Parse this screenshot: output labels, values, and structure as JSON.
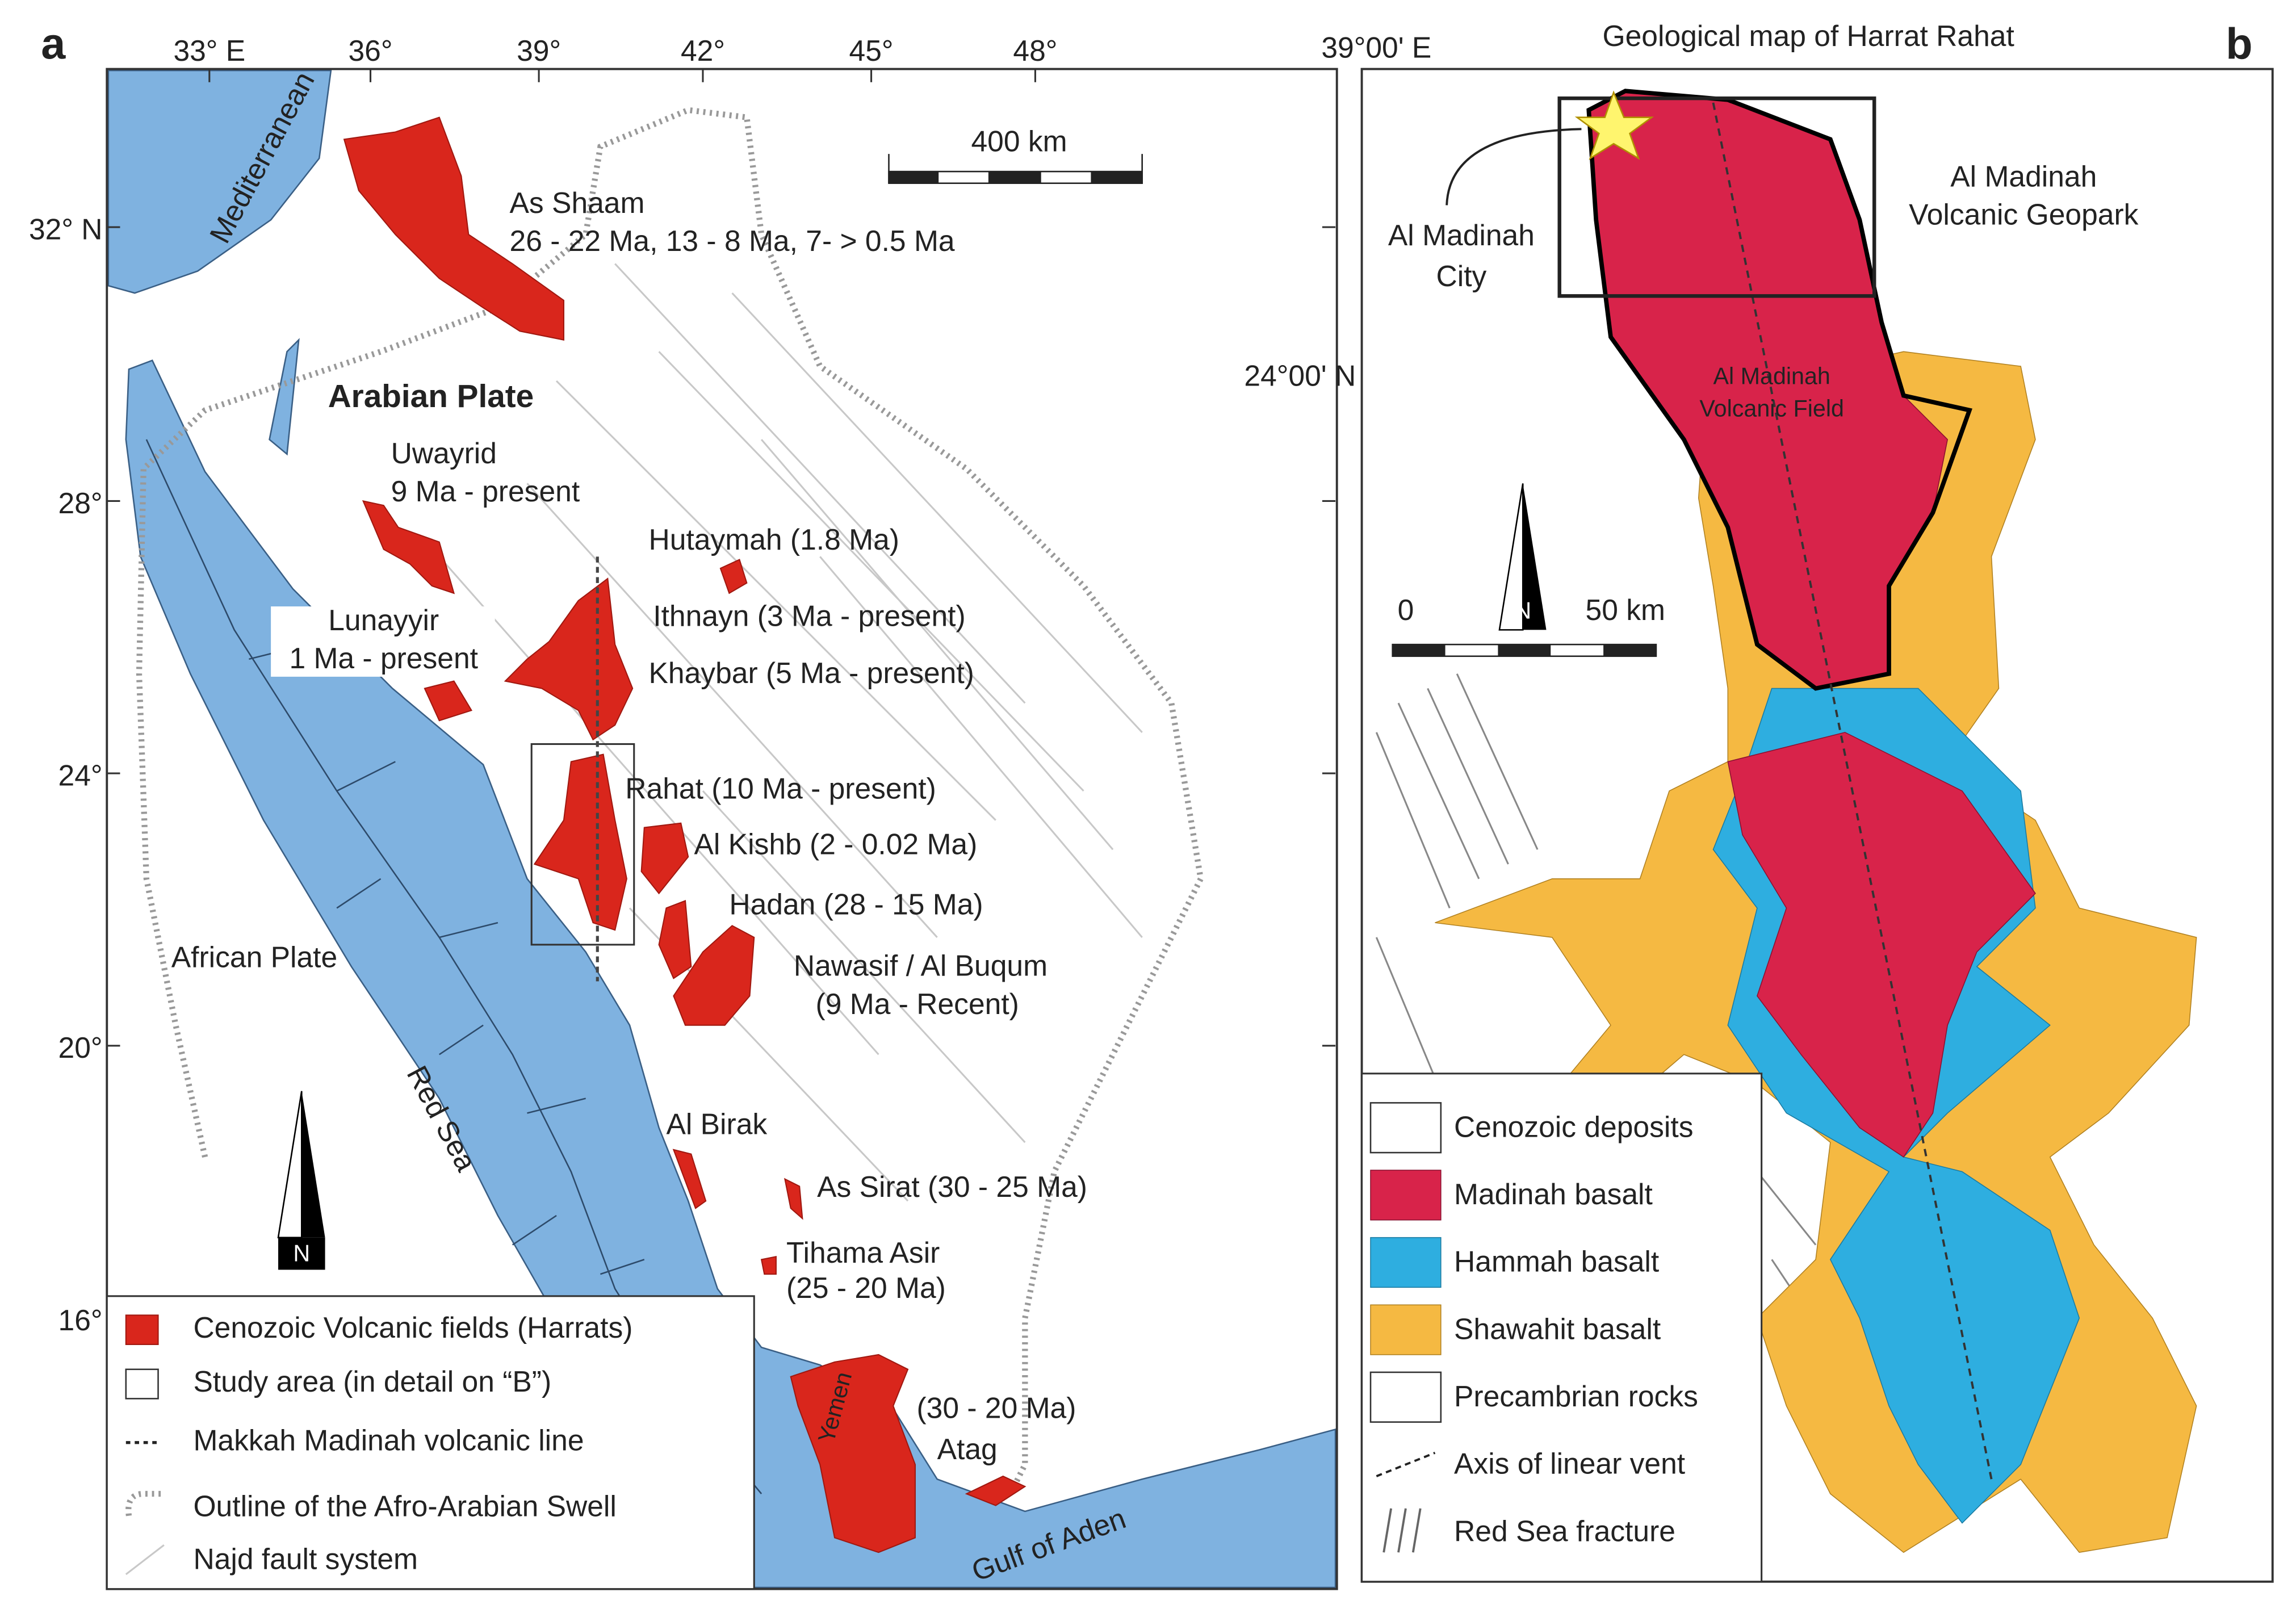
{
  "panel_a": {
    "label": "a",
    "lon_labels": [
      "33° E",
      "36°",
      "39°",
      "42°",
      "45°",
      "48°"
    ],
    "lat_labels": [
      "32° N",
      "28°",
      "24°",
      "20°",
      "16°"
    ],
    "scale_bar": "400 km",
    "north": "N",
    "places": [
      "Mediterranean",
      "Arabian Plate",
      "African Plate",
      "Red Sea",
      "Gulf of Aden",
      "Yemen"
    ],
    "fields": [
      "As Shaam",
      "26 - 22 Ma, 13 - 8 Ma, 7- > 0.5 Ma",
      "Uwayrid",
      "9 Ma - present",
      "Hutaymah (1.8 Ma)",
      "Ithnayn (3 Ma - present)",
      "Lunayyir",
      "1 Ma - present",
      "Khaybar (5 Ma - present)",
      "Rahat (10 Ma - present)",
      "Al Kishb (2 - 0.02 Ma)",
      "Hadan (28 - 15 Ma)",
      "Nawasif / Al Buqum",
      "(9 Ma - Recent)",
      "Al Birak",
      "As Sirat (30 - 25 Ma)",
      "Tihama Asir",
      "(25 - 20 Ma)",
      "(30 - 20 Ma)",
      "Atag"
    ],
    "legend": [
      "Cenozoic Volcanic fields (Harrats)",
      "Study area (in detail on “B”)",
      "Makkah Madinah volcanic line",
      "Outline of the Afro-Arabian Swell",
      "Najd fault system"
    ]
  },
  "panel_b": {
    "label": "b",
    "title": "Geological map of Harrat Rahat",
    "lon_label": "39°00' E",
    "lat_label": "24°00' N",
    "city": [
      "Al Madinah",
      "City"
    ],
    "geopark": [
      "Al Madinah",
      "Volcanic Geopark"
    ],
    "volcanic_field": [
      "Al Madinah",
      "Volcanic Field"
    ],
    "scale_start": "0",
    "scale_end": "50 km",
    "north": "N",
    "legend": [
      "Cenozoic deposits",
      "Madinah basalt",
      "Hammah basalt",
      "Shawahit basalt",
      "Precambrian rocks",
      "Axis of linear vent",
      "Red Sea fracture"
    ]
  }
}
